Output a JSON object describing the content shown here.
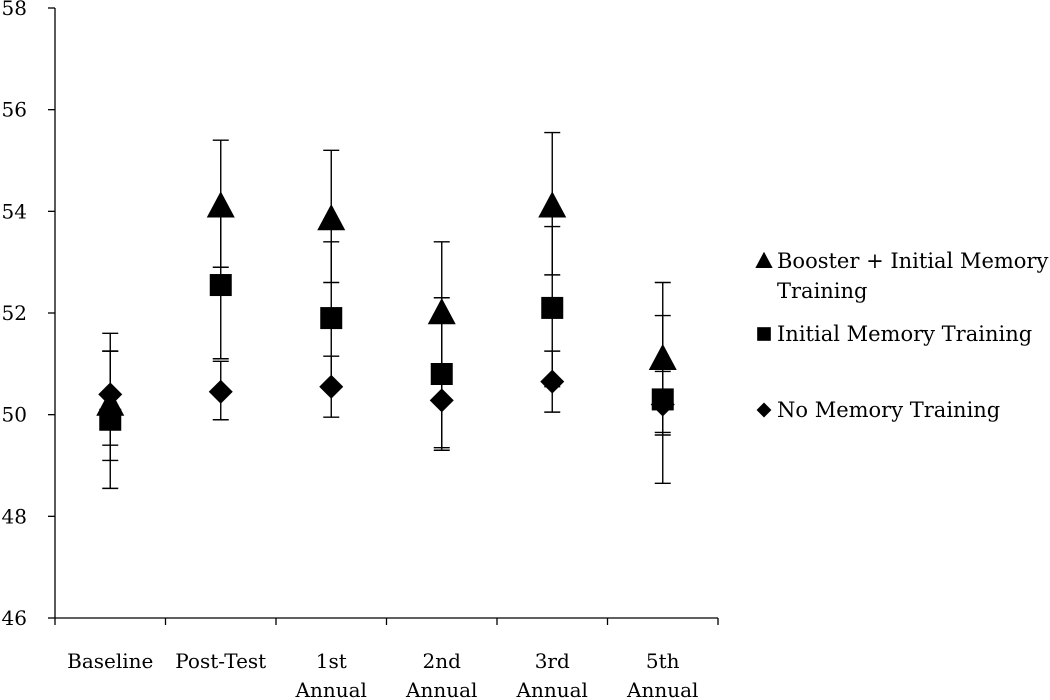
{
  "chart_data": {
    "type": "scatter",
    "categories": [
      [
        "Baseline"
      ],
      [
        "Post-Test"
      ],
      [
        "1st",
        "Annual"
      ],
      [
        "2nd",
        "Annual"
      ],
      [
        "3rd",
        "Annual"
      ],
      [
        "5th",
        "Annual"
      ]
    ],
    "ylim": [
      46,
      58
    ],
    "yticks": [
      "46",
      "48",
      "50",
      "52",
      "54",
      "56",
      "58"
    ],
    "grid": false,
    "legend_position": "right",
    "series": [
      {
        "name": "Booster + Initial Memory Training",
        "legend_lines": [
          "Booster + Initial Memory",
          "Training"
        ],
        "marker": "triangle",
        "values": [
          50.2,
          54.1,
          53.85,
          52.0,
          54.1,
          51.1
        ],
        "err_low": [
          49.1,
          52.9,
          52.6,
          50.75,
          52.75,
          49.65
        ],
        "err_high": [
          51.25,
          55.4,
          55.2,
          53.4,
          55.55,
          52.6
        ]
      },
      {
        "name": "Initial Memory Training",
        "legend_lines": [
          "Initial Memory Training"
        ],
        "marker": "square",
        "values": [
          49.9,
          52.55,
          51.9,
          50.8,
          52.1,
          50.3
        ],
        "err_low": [
          48.55,
          51.1,
          50.5,
          49.35,
          50.55,
          48.65
        ],
        "err_high": [
          51.25,
          53.95,
          53.4,
          52.3,
          53.7,
          51.95
        ]
      },
      {
        "name": "No Memory Training",
        "legend_lines": [
          "No Memory Training"
        ],
        "marker": "diamond",
        "values": [
          50.4,
          50.45,
          50.55,
          50.28,
          50.65,
          50.2
        ],
        "err_low": [
          49.4,
          49.9,
          49.95,
          49.3,
          50.05,
          49.6
        ],
        "err_high": [
          51.6,
          51.05,
          51.15,
          51.0,
          51.25,
          50.85
        ]
      }
    ]
  }
}
